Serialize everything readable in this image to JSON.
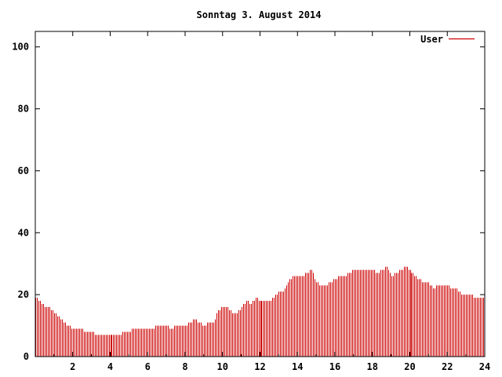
{
  "chart_data": {
    "type": "bar",
    "title": "Sonntag 3. August 2014",
    "xlabel": "",
    "ylabel": "",
    "xlim": [
      0,
      24
    ],
    "ylim": [
      0,
      105
    ],
    "xticks": [
      "2",
      "4",
      "6",
      "8",
      "10",
      "12",
      "14",
      "16",
      "18",
      "20",
      "22",
      "24"
    ],
    "yticks": [
      "0",
      "20",
      "40",
      "60",
      "80",
      "100"
    ],
    "grid": false,
    "legend_position": "top-right",
    "series": [
      {
        "name": "User",
        "color": "#cc0000",
        "profile": [
          [
            0.0,
            19
          ],
          [
            0.25,
            18
          ],
          [
            0.5,
            16
          ],
          [
            0.75,
            16
          ],
          [
            1.0,
            14
          ],
          [
            1.25,
            13
          ],
          [
            1.5,
            11
          ],
          [
            1.75,
            10
          ],
          [
            2.0,
            9
          ],
          [
            2.25,
            8.5
          ],
          [
            2.5,
            8.5
          ],
          [
            3.0,
            8
          ],
          [
            3.25,
            7
          ],
          [
            3.5,
            7
          ],
          [
            4.0,
            7
          ],
          [
            4.5,
            7
          ],
          [
            4.75,
            8
          ],
          [
            5.0,
            8
          ],
          [
            5.25,
            9
          ],
          [
            5.75,
            9
          ],
          [
            6.25,
            9
          ],
          [
            6.5,
            10
          ],
          [
            7.0,
            10
          ],
          [
            7.25,
            9
          ],
          [
            7.5,
            10
          ],
          [
            8.0,
            10
          ],
          [
            8.25,
            11
          ],
          [
            8.5,
            12
          ],
          [
            8.75,
            11
          ],
          [
            9.0,
            10
          ],
          [
            9.25,
            11
          ],
          [
            9.5,
            11
          ],
          [
            9.75,
            15
          ],
          [
            10.0,
            16
          ],
          [
            10.25,
            16
          ],
          [
            10.5,
            14
          ],
          [
            10.75,
            14
          ],
          [
            11.0,
            16
          ],
          [
            11.25,
            18
          ],
          [
            11.5,
            17
          ],
          [
            11.75,
            19
          ],
          [
            12.0,
            18
          ],
          [
            12.5,
            18
          ],
          [
            12.75,
            19
          ],
          [
            13.0,
            21
          ],
          [
            13.25,
            21
          ],
          [
            13.5,
            24
          ],
          [
            13.75,
            26
          ],
          [
            14.0,
            26
          ],
          [
            14.25,
            26
          ],
          [
            14.5,
            27
          ],
          [
            14.75,
            28
          ],
          [
            15.0,
            24
          ],
          [
            15.25,
            23
          ],
          [
            15.5,
            23
          ],
          [
            15.75,
            24
          ],
          [
            16.0,
            25
          ],
          [
            16.25,
            26
          ],
          [
            16.5,
            26
          ],
          [
            16.75,
            27
          ],
          [
            17.0,
            28
          ],
          [
            17.5,
            28
          ],
          [
            18.0,
            28
          ],
          [
            18.25,
            27
          ],
          [
            18.5,
            28
          ],
          [
            18.75,
            29
          ],
          [
            19.0,
            26
          ],
          [
            19.25,
            27
          ],
          [
            19.5,
            28
          ],
          [
            19.75,
            29
          ],
          [
            20.0,
            28
          ],
          [
            20.25,
            26
          ],
          [
            20.5,
            25
          ],
          [
            20.75,
            24
          ],
          [
            21.0,
            24
          ],
          [
            21.25,
            22
          ],
          [
            21.5,
            23
          ],
          [
            21.75,
            23
          ],
          [
            22.0,
            23
          ],
          [
            22.25,
            22
          ],
          [
            22.5,
            22
          ],
          [
            22.75,
            20
          ],
          [
            23.0,
            20
          ],
          [
            23.25,
            20
          ],
          [
            23.5,
            19
          ],
          [
            23.75,
            19
          ],
          [
            24.0,
            19
          ]
        ]
      }
    ]
  }
}
